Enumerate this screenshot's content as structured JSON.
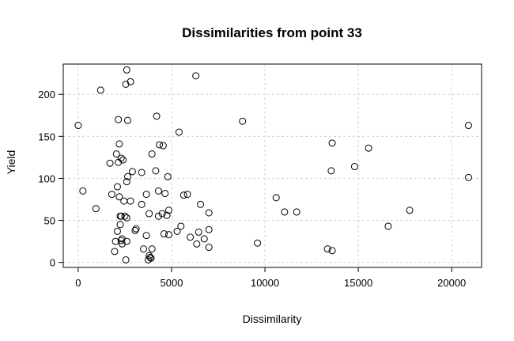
{
  "chart_data": {
    "type": "scatter",
    "title": "Dissimilarities from point 33",
    "xlabel": "Dissimilarity",
    "ylabel": "Yield",
    "xlim": [
      -800,
      21600
    ],
    "ylim": [
      -6,
      236
    ],
    "xticks": [
      0,
      5000,
      10000,
      15000,
      20000
    ],
    "yticks": [
      0,
      50,
      100,
      150,
      200
    ],
    "xtick_labels": [
      "0",
      "5000",
      "10000",
      "15000",
      "20000"
    ],
    "ytick_labels": [
      "0",
      "50",
      "100",
      "150",
      "200"
    ],
    "grid": true,
    "marker": "open-circle",
    "points": [
      [
        0,
        163
      ],
      [
        250,
        85
      ],
      [
        950,
        64
      ],
      [
        1200,
        205
      ],
      [
        1700,
        118
      ],
      [
        1800,
        81
      ],
      [
        1950,
        13
      ],
      [
        2000,
        25
      ],
      [
        2050,
        129
      ],
      [
        2100,
        37
      ],
      [
        2100,
        90
      ],
      [
        2150,
        119
      ],
      [
        2150,
        170
      ],
      [
        2200,
        141
      ],
      [
        2200,
        78
      ],
      [
        2250,
        55
      ],
      [
        2250,
        45
      ],
      [
        2300,
        124
      ],
      [
        2300,
        55
      ],
      [
        2300,
        26
      ],
      [
        2350,
        22
      ],
      [
        2350,
        28
      ],
      [
        2400,
        122
      ],
      [
        2450,
        73
      ],
      [
        2500,
        55
      ],
      [
        2550,
        212
      ],
      [
        2550,
        3
      ],
      [
        2600,
        229
      ],
      [
        2600,
        53
      ],
      [
        2600,
        96
      ],
      [
        2600,
        25
      ],
      [
        2650,
        169
      ],
      [
        2650,
        102
      ],
      [
        2800,
        215
      ],
      [
        2800,
        73
      ],
      [
        2900,
        108
      ],
      [
        3050,
        38
      ],
      [
        3100,
        40
      ],
      [
        3400,
        69
      ],
      [
        3400,
        107
      ],
      [
        3500,
        16
      ],
      [
        3650,
        32
      ],
      [
        3650,
        81
      ],
      [
        3750,
        3
      ],
      [
        3800,
        8
      ],
      [
        3800,
        58
      ],
      [
        3850,
        6
      ],
      [
        3900,
        5
      ],
      [
        3950,
        16
      ],
      [
        3950,
        129
      ],
      [
        4150,
        109
      ],
      [
        4200,
        174
      ],
      [
        4300,
        55
      ],
      [
        4300,
        85
      ],
      [
        4350,
        140
      ],
      [
        4500,
        58
      ],
      [
        4550,
        139
      ],
      [
        4600,
        34
      ],
      [
        4650,
        82
      ],
      [
        4750,
        56
      ],
      [
        4800,
        102
      ],
      [
        4850,
        62
      ],
      [
        4850,
        33
      ],
      [
        5300,
        37
      ],
      [
        5400,
        155
      ],
      [
        5500,
        43
      ],
      [
        5650,
        80
      ],
      [
        5850,
        81
      ],
      [
        6000,
        30
      ],
      [
        6300,
        222
      ],
      [
        6350,
        22
      ],
      [
        6450,
        36
      ],
      [
        6550,
        69
      ],
      [
        6750,
        28
      ],
      [
        7000,
        18
      ],
      [
        7000,
        59
      ],
      [
        7000,
        39
      ],
      [
        8800,
        168
      ],
      [
        9600,
        23
      ],
      [
        10600,
        77
      ],
      [
        11050,
        60
      ],
      [
        11700,
        60
      ],
      [
        13350,
        16
      ],
      [
        13600,
        142
      ],
      [
        13550,
        109
      ],
      [
        13600,
        14
      ],
      [
        14800,
        114
      ],
      [
        15550,
        136
      ],
      [
        16600,
        43
      ],
      [
        17750,
        62
      ],
      [
        20900,
        163
      ],
      [
        20900,
        101
      ]
    ]
  }
}
